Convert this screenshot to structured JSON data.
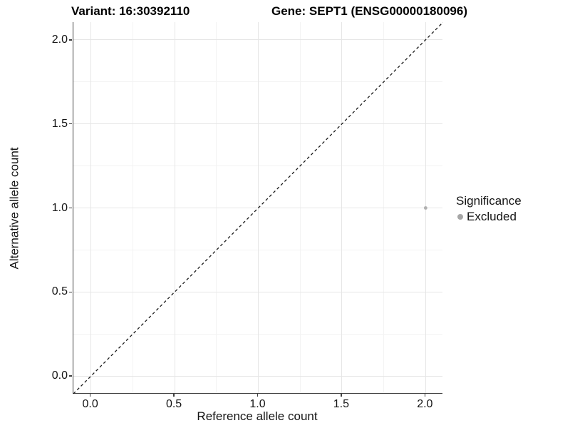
{
  "chart_data": {
    "type": "scatter",
    "title_left": "Variant: 16:30392110",
    "title_right": "Gene: SEPT1 (ENSG00000180096)",
    "xlabel": "Reference allele count",
    "ylabel": "Alternative allele count",
    "xlim": [
      -0.105,
      2.105
    ],
    "ylim": [
      -0.105,
      2.105
    ],
    "x_ticks": {
      "values": [
        0.0,
        0.5,
        1.0,
        1.5,
        2.0
      ],
      "labels": [
        "0.0",
        "0.5",
        "1.0",
        "1.5",
        "2.0"
      ]
    },
    "y_ticks": {
      "values": [
        0.0,
        0.5,
        1.0,
        1.5,
        2.0
      ],
      "labels": [
        "0.0",
        "0.5",
        "1.0",
        "1.5",
        "2.0"
      ]
    },
    "minor_ticks": [
      0.25,
      0.75,
      1.25,
      1.75
    ],
    "grid": true,
    "reference_line": {
      "style": "dashed",
      "slope": 1,
      "intercept": 0,
      "color": "#1a1a1a"
    },
    "series": [
      {
        "name": "Excluded",
        "color": "#b0b0b0",
        "points": [
          {
            "x": 2.0,
            "y": 1.0
          }
        ]
      }
    ],
    "legend": {
      "position": "right",
      "title": "Significance",
      "entries": [
        {
          "label": "Excluded",
          "color": "#a6a6a6"
        }
      ]
    },
    "colors": {
      "grid_major": "#e6e6e6",
      "grid_minor": "#f3f3f3",
      "axis": "#404040",
      "point": "#b0b0b0"
    }
  }
}
